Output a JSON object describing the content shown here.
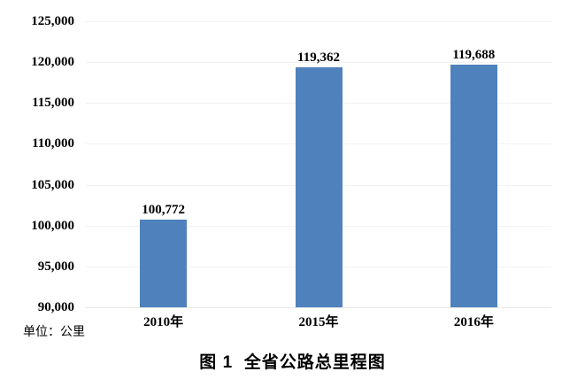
{
  "chart_data": {
    "type": "bar",
    "title": "图 1  全省公路总里程图",
    "unit_label": "单位：公里",
    "categories": [
      "2010年",
      "2015年",
      "2016年"
    ],
    "values": [
      100772,
      119362,
      119688
    ],
    "value_labels": [
      "100,772",
      "119,362",
      "119,688"
    ],
    "ylim": [
      90000,
      125000
    ],
    "ytick_step": 5000,
    "ytick_values": [
      125000,
      120000,
      115000,
      110000,
      105000,
      100000,
      95000,
      90000
    ],
    "ytick_labels": [
      "125,000",
      "120,000",
      "115,000",
      "110,000",
      "105,000",
      "100,000",
      "95,000",
      "90,000"
    ],
    "grid": "horizontal-gridlines-on",
    "legend": "none",
    "bar_color": "#4F81BD",
    "gridline_color": "#F2F2F2",
    "axisline_color": "#EBE8E4",
    "label_color": "#000000"
  }
}
